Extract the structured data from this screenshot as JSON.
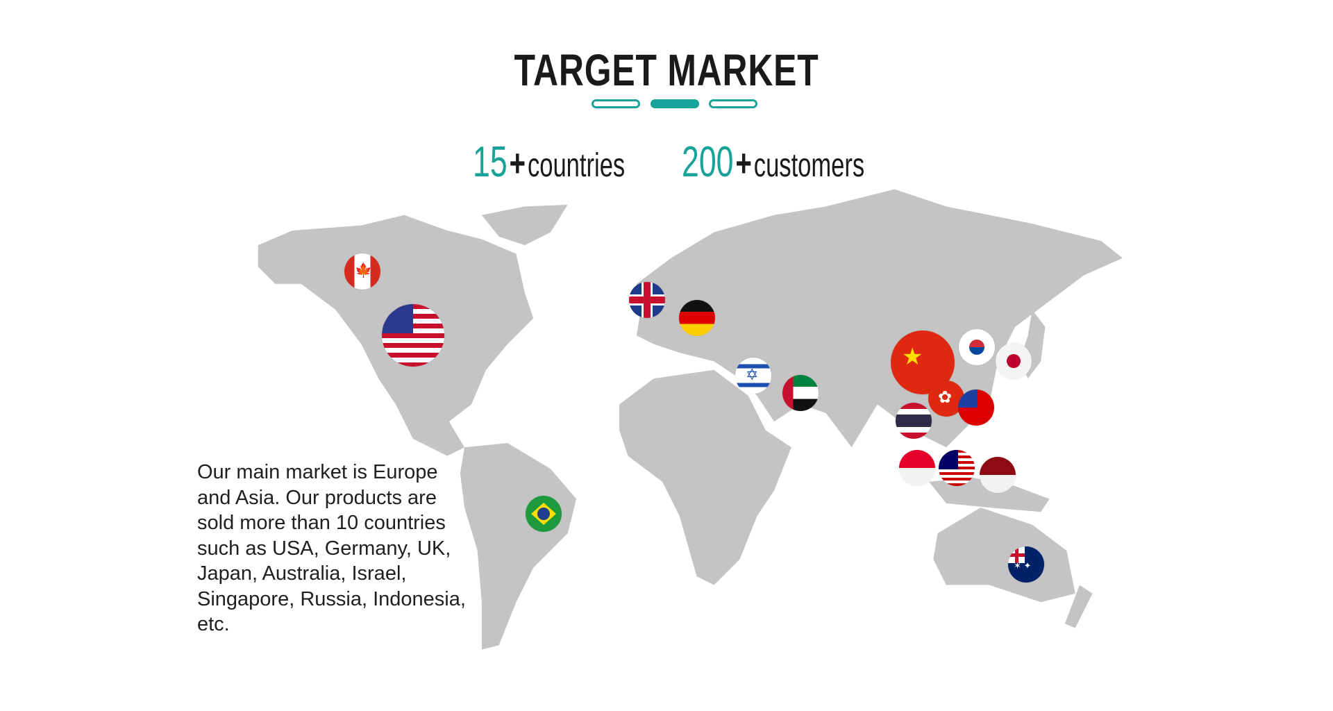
{
  "header": {
    "title": "TARGET MARKET",
    "indicator": {
      "count": 3,
      "active_index": 1
    }
  },
  "stats": [
    {
      "value": "15",
      "plus": "+",
      "label": "countries"
    },
    {
      "value": "200",
      "plus": "+",
      "label": "customers"
    }
  ],
  "description": "Our main market is Europe and Asia. Our products are sold more than 10 countries such as USA, Germany, UK, Japan, Australia, Israel, Singapore, Russia, Indonesia, etc.",
  "colors": {
    "accent": "#17a39a",
    "map": "#c4c4c4",
    "text": "#1a1a1a"
  },
  "markers": [
    "flag-canada-icon",
    "flag-usa-icon",
    "flag-uk-icon",
    "flag-germany-icon",
    "flag-israel-icon",
    "flag-uae-icon",
    "flag-china-icon",
    "flag-south-korea-icon",
    "flag-japan-icon",
    "flag-hong-kong-icon",
    "flag-taiwan-icon",
    "flag-thailand-icon",
    "flag-singapore-icon",
    "flag-malaysia-icon",
    "flag-indonesia-icon",
    "flag-brazil-icon",
    "flag-australia-icon"
  ]
}
